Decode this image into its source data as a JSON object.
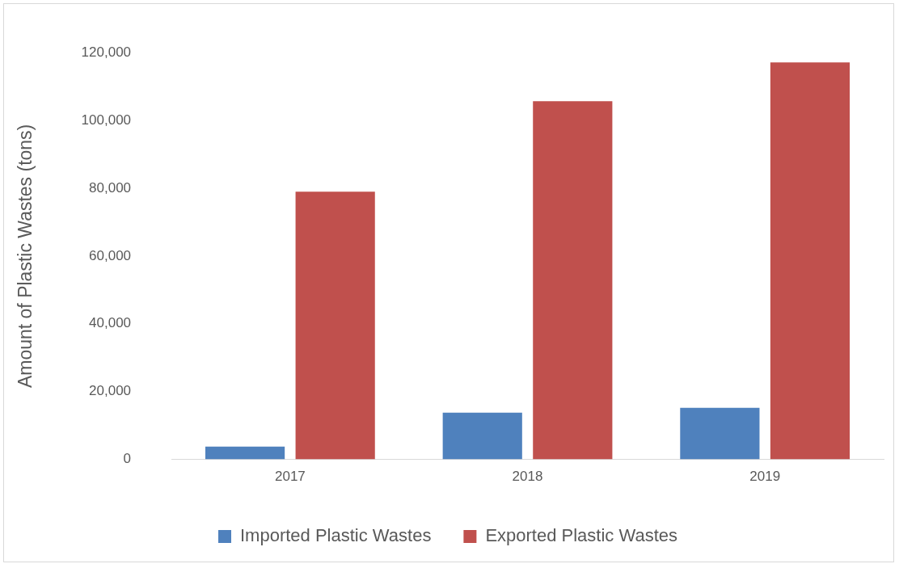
{
  "chart_data": {
    "type": "bar",
    "ylabel": "Amount of Plastic Wastes (tons)",
    "categories": [
      "2017",
      "2018",
      "2019"
    ],
    "series": [
      {
        "name": "Imported Plastic Wastes",
        "color": "#4f81bd",
        "values": [
          3800,
          13800,
          15200
        ]
      },
      {
        "name": "Exported Plastic Wastes",
        "color": "#c0504d",
        "values": [
          79000,
          105700,
          117100
        ]
      }
    ],
    "ylim": [
      0,
      120000
    ],
    "yticks": [
      {
        "value": 0,
        "label": "0"
      },
      {
        "value": 20000,
        "label": "20,000"
      },
      {
        "value": 40000,
        "label": "40,000"
      },
      {
        "value": 60000,
        "label": "60,000"
      },
      {
        "value": 80000,
        "label": "80,000"
      },
      {
        "value": 100000,
        "label": "100,000"
      },
      {
        "value": 120000,
        "label": "120,000"
      }
    ],
    "grid": false,
    "legend": "bottom"
  }
}
